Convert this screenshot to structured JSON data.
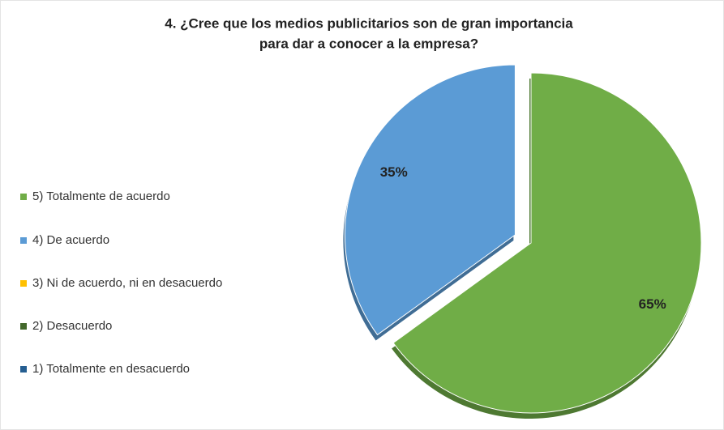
{
  "chart_data": {
    "type": "pie",
    "title": [
      "4. ¿Cree que los medios publicitarios son de gran importancia",
      "para dar a conocer a la empresa?"
    ],
    "categories": [
      "5) Totalmente de acuerdo",
      "4) De acuerdo",
      "3) Ni de acuerdo, ni en desacuerdo",
      "2) Desacuerdo",
      "1) Totalmente en desacuerdo"
    ],
    "values": [
      65,
      35,
      0,
      0,
      0
    ],
    "value_labels": [
      "65%",
      "35%",
      null,
      null,
      null
    ],
    "colors": [
      "#70ad47",
      "#5b9bd5",
      "#ffc000",
      "#43682b",
      "#255e91"
    ],
    "legend": "left"
  }
}
